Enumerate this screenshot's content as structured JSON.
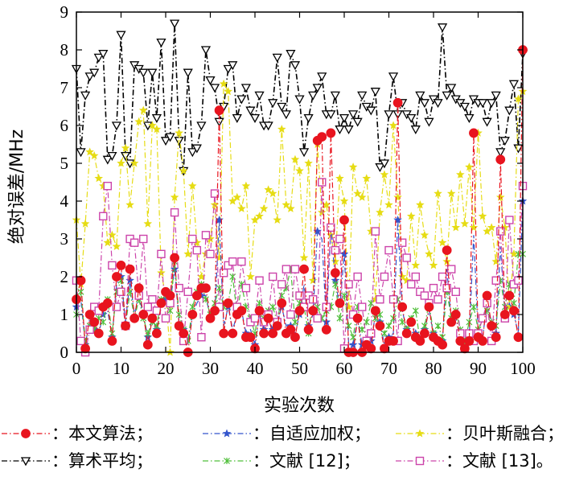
{
  "chart_data": {
    "type": "line",
    "xlabel": "实验次数",
    "ylabel": "绝对误差/MHz",
    "xlim": [
      0,
      100
    ],
    "ylim": [
      0,
      9
    ],
    "xticks": [
      0,
      10,
      20,
      30,
      40,
      50,
      60,
      70,
      80,
      90,
      100
    ],
    "yticks": [
      0,
      1,
      2,
      3,
      4,
      5,
      6,
      7,
      8,
      9
    ],
    "grid": false,
    "legend_position": "bottom",
    "series": [
      {
        "name": "本文算法",
        "legend_label": "：本文算法；",
        "color": "#e8141e",
        "line_style": "dash-dot",
        "marker": "filled-circle",
        "values": [
          1.4,
          1.9,
          0.1,
          1.0,
          0.8,
          0.5,
          1.2,
          1.3,
          0.3,
          2.0,
          2.3,
          0.7,
          2.2,
          0.9,
          1.7,
          1.0,
          0.2,
          0.9,
          0.5,
          1.3,
          1.6,
          1.5,
          2.5,
          0.7,
          0.5,
          0.0,
          1.0,
          1.5,
          1.7,
          1.7,
          0.9,
          1.1,
          6.4,
          0.5,
          1.3,
          0.5,
          1.0,
          1.1,
          0.4,
          0.4,
          0.1,
          1.1,
          0.5,
          0.9,
          0.5,
          0.7,
          1.3,
          0.5,
          0.6,
          0.4,
          1.1,
          2.2,
          0.6,
          1.1,
          5.6,
          5.7,
          0.6,
          5.8,
          2.1,
          1.3,
          3.5,
          0.0,
          0.0,
          0.9,
          0.0,
          0.2,
          0.1,
          1.1,
          0.7,
          0.1,
          0.3,
          0.3,
          6.6,
          1.2,
          0.5,
          0.8,
          0.4,
          0.3,
          0.5,
          1.2,
          0.4,
          0.3,
          0.2,
          2.7,
          0.8,
          1.0,
          0.3,
          0.1,
          0.3,
          5.8,
          0.4,
          0.3,
          1.5,
          0.7,
          0.4,
          5.1,
          1.0,
          1.5,
          1.1,
          0.4,
          8.0
        ]
      },
      {
        "name": "自适应加权",
        "legend_label": "：自适应加权；",
        "color": "#3355cc",
        "line_style": "dash-dot",
        "marker": "star",
        "values": [
          1.2,
          1.4,
          0.2,
          0.9,
          0.6,
          0.5,
          1.0,
          1.1,
          0.4,
          1.8,
          2.0,
          0.8,
          1.9,
          1.0,
          1.5,
          1.0,
          0.4,
          0.9,
          0.6,
          1.2,
          1.4,
          1.3,
          2.2,
          0.8,
          0.6,
          0.2,
          1.0,
          1.3,
          1.5,
          1.5,
          0.9,
          1.0,
          3.5,
          0.7,
          1.2,
          0.6,
          1.0,
          1.1,
          0.5,
          0.6,
          0.2,
          1.0,
          0.6,
          0.9,
          0.6,
          0.8,
          1.2,
          0.7,
          0.7,
          0.5,
          1.0,
          1.8,
          0.7,
          1.0,
          3.2,
          3.0,
          0.8,
          3.3,
          1.9,
          1.2,
          2.6,
          0.2,
          0.2,
          0.9,
          0.2,
          0.4,
          0.3,
          1.0,
          0.8,
          0.2,
          0.4,
          0.5,
          3.5,
          1.1,
          0.6,
          0.8,
          0.5,
          0.4,
          0.6,
          1.1,
          0.5,
          0.4,
          0.3,
          2.2,
          0.8,
          0.9,
          0.4,
          0.2,
          0.4,
          3.1,
          0.5,
          0.4,
          1.3,
          0.8,
          0.5,
          2.8,
          1.0,
          1.3,
          1.0,
          0.5,
          4.0
        ]
      },
      {
        "name": "贝叶斯融合",
        "legend_label": "：贝叶斯融合；",
        "color": "#e6dc14",
        "line_style": "dash-dot",
        "marker": "star",
        "values": [
          3.5,
          1.8,
          3.4,
          5.3,
          5.2,
          4.6,
          4.4,
          2.9,
          3.1,
          2.8,
          5.0,
          5.4,
          3.9,
          5.0,
          6.1,
          6.4,
          3.4,
          6.0,
          5.9,
          2.1,
          1.5,
          0.0,
          4.1,
          5.8,
          4.8,
          2.6,
          4.4,
          2.9,
          2.0,
          2.6,
          3.0,
          3.9,
          2.5,
          7.1,
          6.9,
          4.0,
          4.1,
          3.8,
          4.4,
          2.0,
          3.5,
          3.6,
          3.8,
          4.3,
          4.2,
          3.5,
          5.9,
          3.9,
          3.8,
          5.1,
          4.8,
          2.5,
          5.0,
          1.9,
          5.5,
          3.7,
          3.9,
          3.1,
          2.4,
          4.6,
          4.0,
          1.2,
          4.9,
          4.2,
          4.1,
          4.6,
          3.2,
          1.4,
          3.7,
          4.7,
          3.9,
          6.0,
          4.1,
          2.0,
          1.9,
          3.6,
          2.3,
          3.9,
          3.1,
          2.6,
          2.3,
          4.2,
          2.9,
          2.4,
          4.2,
          3.3,
          4.7,
          3.4,
          4.9,
          3.3,
          5.8,
          3.6,
          3.2,
          3.3,
          2.4,
          4.1,
          3.3,
          1.2,
          2.6,
          6.7,
          6.9
        ]
      },
      {
        "name": "算术平均",
        "legend_label": "：算术平均；",
        "color": "#000000",
        "line_style": "dash-dot",
        "marker": "triangle-down",
        "values": [
          7.5,
          5.3,
          6.8,
          7.3,
          7.4,
          7.8,
          7.9,
          5.1,
          5.2,
          6.0,
          8.4,
          5.2,
          5.0,
          7.6,
          7.5,
          7.4,
          6.0,
          7.4,
          6.2,
          8.2,
          5.6,
          5.7,
          8.7,
          5.6,
          4.8,
          7.4,
          5.3,
          5.4,
          6.0,
          8.0,
          7.2,
          7.0,
          6.1,
          6.5,
          7.5,
          7.6,
          6.2,
          6.7,
          7.0,
          6.4,
          6.2,
          6.8,
          6.0,
          6.0,
          6.6,
          7.8,
          6.5,
          6.3,
          7.9,
          7.6,
          6.7,
          5.3,
          6.2,
          6.8,
          7.0,
          7.3,
          6.3,
          6.3,
          6.8,
          5.9,
          6.2,
          5.9,
          6.3,
          6.1,
          6.8,
          6.5,
          6.4,
          6.9,
          4.9,
          5.0,
          6.3,
          7.3,
          6.3,
          6.6,
          6.3,
          6.2,
          5.9,
          6.8,
          6.6,
          6.1,
          6.7,
          6.6,
          8.6,
          6.8,
          7.0,
          6.7,
          6.6,
          6.5,
          6.2,
          6.7,
          6.6,
          6.6,
          6.1,
          6.6,
          6.8,
          5.3,
          5.6,
          6.4,
          7.1,
          5.4,
          7.9
        ]
      },
      {
        "name": "文献 [12]",
        "legend_label": "：文献 [12]；",
        "color": "#4fbf3a",
        "line_style": "dash-dot",
        "marker": "x-star",
        "values": [
          1.0,
          1.6,
          0.3,
          0.7,
          0.6,
          0.9,
          0.8,
          1.4,
          0.5,
          1.6,
          1.9,
          0.7,
          1.6,
          0.9,
          1.4,
          0.9,
          0.5,
          0.8,
          0.7,
          1.4,
          1.5,
          1.1,
          2.4,
          1.0,
          0.6,
          0.3,
          1.2,
          1.6,
          1.8,
          1.4,
          1.0,
          1.3,
          1.7,
          1.2,
          1.3,
          2.0,
          1.0,
          1.8,
          1.2,
          0.9,
          0.5,
          1.3,
          0.9,
          1.1,
          1.2,
          0.8,
          1.5,
          1.7,
          2.2,
          0.8,
          1.3,
          1.2,
          0.5,
          1.4,
          1.2,
          0.9,
          1.1,
          1.2,
          1.8,
          0.9,
          1.5,
          0.7,
          0.4,
          1.2,
          0.6,
          0.8,
          1.3,
          0.9,
          1.0,
          0.5,
          0.7,
          0.9,
          1.4,
          0.8,
          0.6,
          0.9,
          1.1,
          0.3,
          0.7,
          1.3,
          0.5,
          0.7,
          0.4,
          1.6,
          0.9,
          1.1,
          0.6,
          0.3,
          0.8,
          1.2,
          0.6,
          0.9,
          1.1,
          0.8,
          0.7,
          1.9,
          1.2,
          1.8,
          1.3,
          2.6,
          2.6
        ]
      },
      {
        "name": "文献 [13]",
        "legend_label": "：文献 [13]。",
        "color": "#cc44aa",
        "line_style": "dash-dot",
        "marker": "open-square",
        "values": [
          1.9,
          0.3,
          0.0,
          0.6,
          1.2,
          1.1,
          3.6,
          4.4,
          2.3,
          1.2,
          1.6,
          0.7,
          3.0,
          2.9,
          1.5,
          3.0,
          1.2,
          1.4,
          1.1,
          2.6,
          0.9,
          1.3,
          3.7,
          1.7,
          0.3,
          1.6,
          3.0,
          2.7,
          0.4,
          3.1,
          2.6,
          4.2,
          1.2,
          2.1,
          2.3,
          2.4,
          1.2,
          2.4,
          1.7,
          0.8,
          0.9,
          1.9,
          0.8,
          1.0,
          2.0,
          0.8,
          1.8,
          2.2,
          1.0,
          2.2,
          1.5,
          1.2,
          1.5,
          1.4,
          0.9,
          4.5,
          1.2,
          3.3,
          2.7,
          3.0,
          0.1,
          1.8,
          1.0,
          2.0,
          1.2,
          0.3,
          0.5,
          3.2,
          1.4,
          2.0,
          2.7,
          1.4,
          0.3,
          2.9,
          2.5,
          1.8,
          2.0,
          1.6,
          1.5,
          1.3,
          1.7,
          1.4,
          2.0,
          1.7,
          2.2,
          1.6,
          0.5,
          0.1,
          0.5,
          0.3,
          0.5,
          0.9,
          1.3,
          0.3,
          1.9,
          3.2,
          0.9,
          3.5,
          1.8,
          1.9,
          4.4
        ]
      }
    ]
  }
}
